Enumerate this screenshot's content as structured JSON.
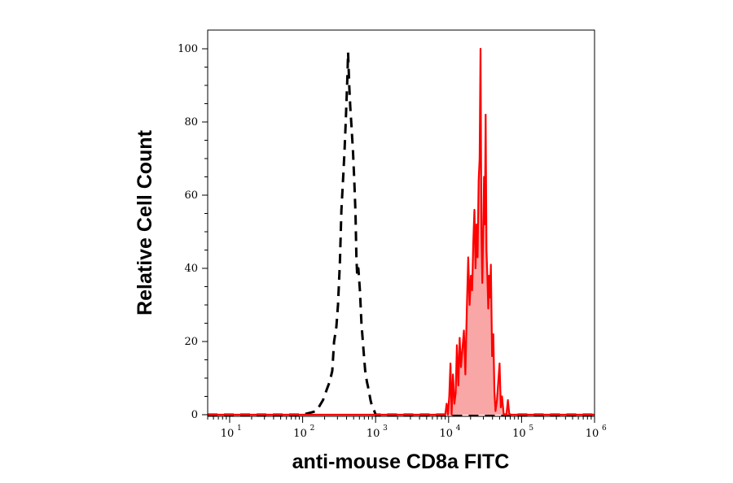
{
  "chart_data": {
    "type": "area",
    "xlabel": "anti-mouse CD8a FITC",
    "ylabel": "Relative Cell Count",
    "x_scale": "log10",
    "xlim": [
      5,
      1000000
    ],
    "ylim": [
      0,
      100
    ],
    "x_ticks": [
      {
        "base": "10",
        "exp": "1",
        "value": 10
      },
      {
        "base": "10",
        "exp": "2",
        "value": 100
      },
      {
        "base": "10",
        "exp": "3",
        "value": 1000
      },
      {
        "base": "10",
        "exp": "4",
        "value": 10000
      },
      {
        "base": "10",
        "exp": "5",
        "value": 100000
      },
      {
        "base": "10",
        "exp": "6",
        "value": 1000000
      }
    ],
    "y_ticks": [
      "0",
      "20",
      "40",
      "60",
      "80",
      "100"
    ],
    "grid": false,
    "legend": "none",
    "series": [
      {
        "style": "dashed",
        "color": "#000000",
        "fill": "none",
        "x": [
          5,
          100,
          155,
          190,
          215,
          235,
          255,
          270,
          290,
          305,
          325,
          340,
          360,
          375,
          390,
          410,
          420,
          435,
          450,
          470,
          490,
          510,
          530,
          545,
          560,
          580,
          610,
          640,
          680,
          720,
          760,
          800,
          850,
          900,
          960,
          1000,
          1100,
          1200,
          1000000
        ],
        "y": [
          0,
          0,
          1,
          4,
          7,
          9,
          12,
          20,
          24,
          30,
          42,
          56,
          65,
          72,
          80,
          92,
          99,
          90,
          84,
          78,
          72,
          64,
          55,
          43,
          38,
          40,
          34,
          25,
          18,
          12,
          9,
          7,
          4,
          2,
          1,
          0,
          0,
          0,
          0
        ]
      },
      {
        "style": "solid",
        "color": "#ff0000",
        "fill": "#f9a6a6",
        "x": [
          5,
          9000,
          9400,
          9800,
          10200,
          10600,
          11000,
          11500,
          12000,
          12500,
          13000,
          13600,
          14200,
          14800,
          15500,
          16200,
          17000,
          17800,
          18600,
          19400,
          20200,
          21000,
          21800,
          22600,
          23400,
          24200,
          25000,
          25800,
          26600,
          27400,
          28200,
          29000,
          29800,
          30600,
          31400,
          32200,
          33000,
          34000,
          35000,
          36000,
          37000,
          38000,
          39500,
          41000,
          42500,
          44000,
          46000,
          48000,
          50000,
          52000,
          54000,
          57000,
          60000,
          62000,
          65000,
          68000,
          70000,
          80000,
          1000000
        ],
        "y": [
          0,
          0,
          3,
          0,
          5,
          14,
          0,
          11,
          3,
          6,
          19,
          8,
          21,
          13,
          18,
          23,
          11,
          29,
          43,
          30,
          38,
          34,
          47,
          56,
          40,
          52,
          43,
          64,
          70,
          100,
          50,
          36,
          50,
          65,
          52,
          82,
          45,
          38,
          29,
          38,
          32,
          41,
          16,
          22,
          6,
          1,
          4,
          9,
          14,
          2,
          5,
          0,
          0,
          0,
          4,
          0,
          0,
          0,
          0
        ]
      }
    ]
  }
}
